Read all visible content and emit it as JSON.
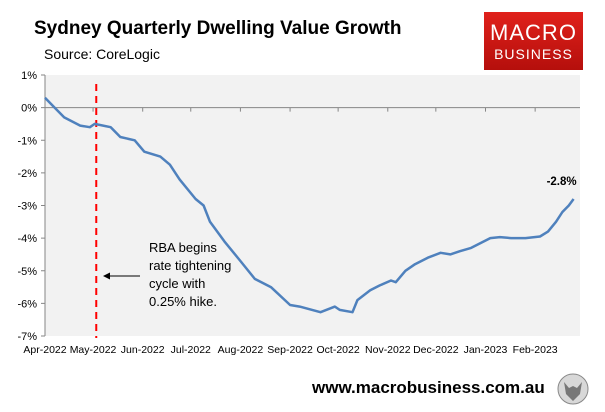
{
  "chart_data": {
    "type": "line",
    "title": "Sydney Quarterly Dwelling Value Growth",
    "subtitle": "Source: CoreLogic",
    "xlabel": "",
    "ylabel": "",
    "ylim": [
      -7,
      1
    ],
    "xlim": [
      "2022-04-01",
      "2023-03-01"
    ],
    "y_ticks": [
      "1%",
      "0%",
      "-1%",
      "-2%",
      "-3%",
      "-4%",
      "-5%",
      "-6%",
      "-7%"
    ],
    "x_ticks": [
      {
        "date": "2022-04-01",
        "label": "Apr-2022"
      },
      {
        "date": "2022-05-01",
        "label": "May-2022"
      },
      {
        "date": "2022-06-01",
        "label": "Jun-2022"
      },
      {
        "date": "2022-07-01",
        "label": "Jul-2022"
      },
      {
        "date": "2022-08-01",
        "label": "Aug-2022"
      },
      {
        "date": "2022-09-01",
        "label": "Sep-2022"
      },
      {
        "date": "2022-10-01",
        "label": "Oct-2022"
      },
      {
        "date": "2022-11-01",
        "label": "Nov-2022"
      },
      {
        "date": "2022-12-01",
        "label": "Dec-2022"
      },
      {
        "date": "2023-01-01",
        "label": "Jan-2023"
      },
      {
        "date": "2023-02-01",
        "label": "Feb-2023"
      }
    ],
    "grid": false,
    "series_color": "#4f81bd",
    "points": [
      [
        "2022-04-01",
        0.3
      ],
      [
        "2022-04-07",
        0.0
      ],
      [
        "2022-04-13",
        -0.3
      ],
      [
        "2022-04-23",
        -0.55
      ],
      [
        "2022-04-29",
        -0.6
      ],
      [
        "2022-05-02",
        -0.5
      ],
      [
        "2022-05-12",
        -0.6
      ],
      [
        "2022-05-18",
        -0.9
      ],
      [
        "2022-05-27",
        -1.0
      ],
      [
        "2022-06-02",
        -1.35
      ],
      [
        "2022-06-12",
        -1.5
      ],
      [
        "2022-06-18",
        -1.75
      ],
      [
        "2022-06-24",
        -2.2
      ],
      [
        "2022-07-04",
        -2.8
      ],
      [
        "2022-07-09",
        -3.0
      ],
      [
        "2022-07-13",
        -3.5
      ],
      [
        "2022-07-22",
        -4.1
      ],
      [
        "2022-08-01",
        -4.7
      ],
      [
        "2022-08-10",
        -5.25
      ],
      [
        "2022-08-20",
        -5.5
      ],
      [
        "2022-09-01",
        -6.05
      ],
      [
        "2022-09-07",
        -6.1
      ],
      [
        "2022-09-20",
        -6.27
      ],
      [
        "2022-09-29",
        -6.1
      ],
      [
        "2022-10-02",
        -6.2
      ],
      [
        "2022-10-10",
        -6.27
      ],
      [
        "2022-10-13",
        -5.9
      ],
      [
        "2022-10-21",
        -5.6
      ],
      [
        "2022-10-27",
        -5.45
      ],
      [
        "2022-11-03",
        -5.3
      ],
      [
        "2022-11-06",
        -5.35
      ],
      [
        "2022-11-12",
        -5.0
      ],
      [
        "2022-11-18",
        -4.8
      ],
      [
        "2022-11-26",
        -4.6
      ],
      [
        "2022-12-04",
        -4.45
      ],
      [
        "2022-12-10",
        -4.5
      ],
      [
        "2022-12-16",
        -4.4
      ],
      [
        "2022-12-23",
        -4.3
      ],
      [
        "2022-12-29",
        -4.15
      ],
      [
        "2023-01-04",
        -4.0
      ],
      [
        "2023-01-10",
        -3.97
      ],
      [
        "2023-01-17",
        -4.0
      ],
      [
        "2023-01-26",
        -4.0
      ],
      [
        "2023-02-04",
        -3.95
      ],
      [
        "2023-02-09",
        -3.8
      ],
      [
        "2023-02-14",
        -3.5
      ],
      [
        "2023-02-18",
        -3.2
      ],
      [
        "2023-02-22",
        -3.0
      ],
      [
        "2023-02-25",
        -2.8
      ]
    ],
    "end_label": "-2.8%",
    "event_line": {
      "date": "2022-05-03",
      "color": "#ff0000"
    },
    "annotation": [
      "RBA begins",
      "rate tightening",
      "cycle with",
      "0.25% hike."
    ]
  },
  "logo": {
    "line1": "MACRO",
    "line2": "BUSINESS",
    "color": "#d71a16"
  },
  "footer": {
    "url": "www.macrobusiness.com.au",
    "icon": "wolf-icon"
  }
}
